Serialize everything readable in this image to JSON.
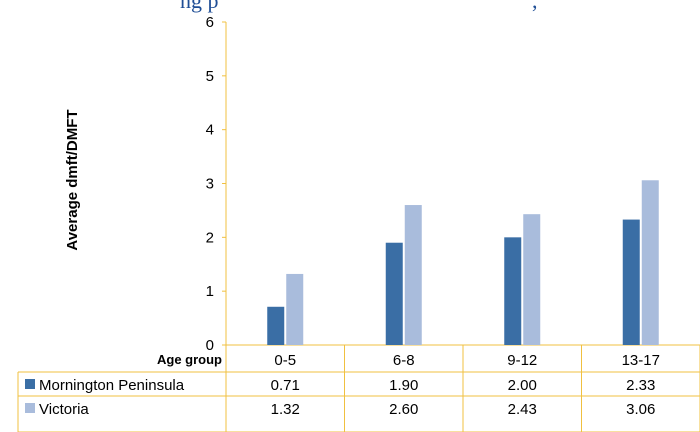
{
  "chart_data": {
    "type": "bar",
    "title": "ng p",
    "title_right": ", ",
    "ylabel": "Average dmft/DMFT",
    "xlabel": "Age group",
    "ylim": [
      0,
      6
    ],
    "yticks": [
      0,
      1,
      2,
      3,
      4,
      5,
      6
    ],
    "categories": [
      "0-5",
      "6-8",
      "9-12",
      "13-17"
    ],
    "series": [
      {
        "name": "Mornington Peninsula",
        "values": [
          0.71,
          1.9,
          2.0,
          2.33
        ],
        "labels": [
          "0.71",
          "1.90",
          "2.00",
          "2.33"
        ],
        "color": "#3a6ea5"
      },
      {
        "name": "Victoria",
        "values": [
          1.32,
          2.6,
          2.43,
          3.06
        ],
        "labels": [
          "1.32",
          "2.60",
          "2.43",
          "3.06"
        ],
        "color": "#a9bcdc"
      }
    ],
    "grid": false,
    "legend": "data-table",
    "axis_color": "#f0c040"
  }
}
